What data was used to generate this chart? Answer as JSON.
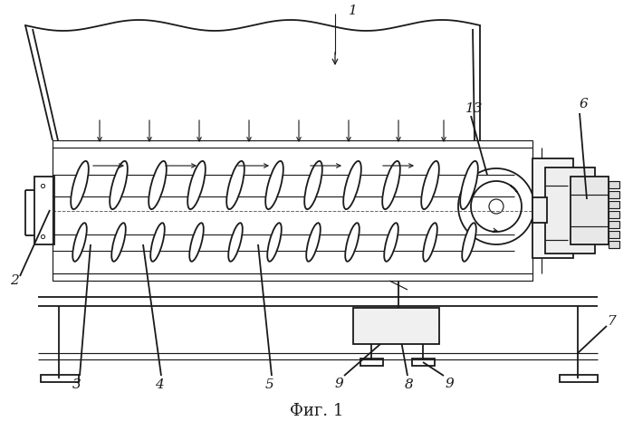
{
  "title": "Фиг. 1",
  "bg_color": "#ffffff",
  "line_color": "#1a1a1a",
  "figsize": [
    6.99,
    4.65
  ],
  "dpi": 100
}
